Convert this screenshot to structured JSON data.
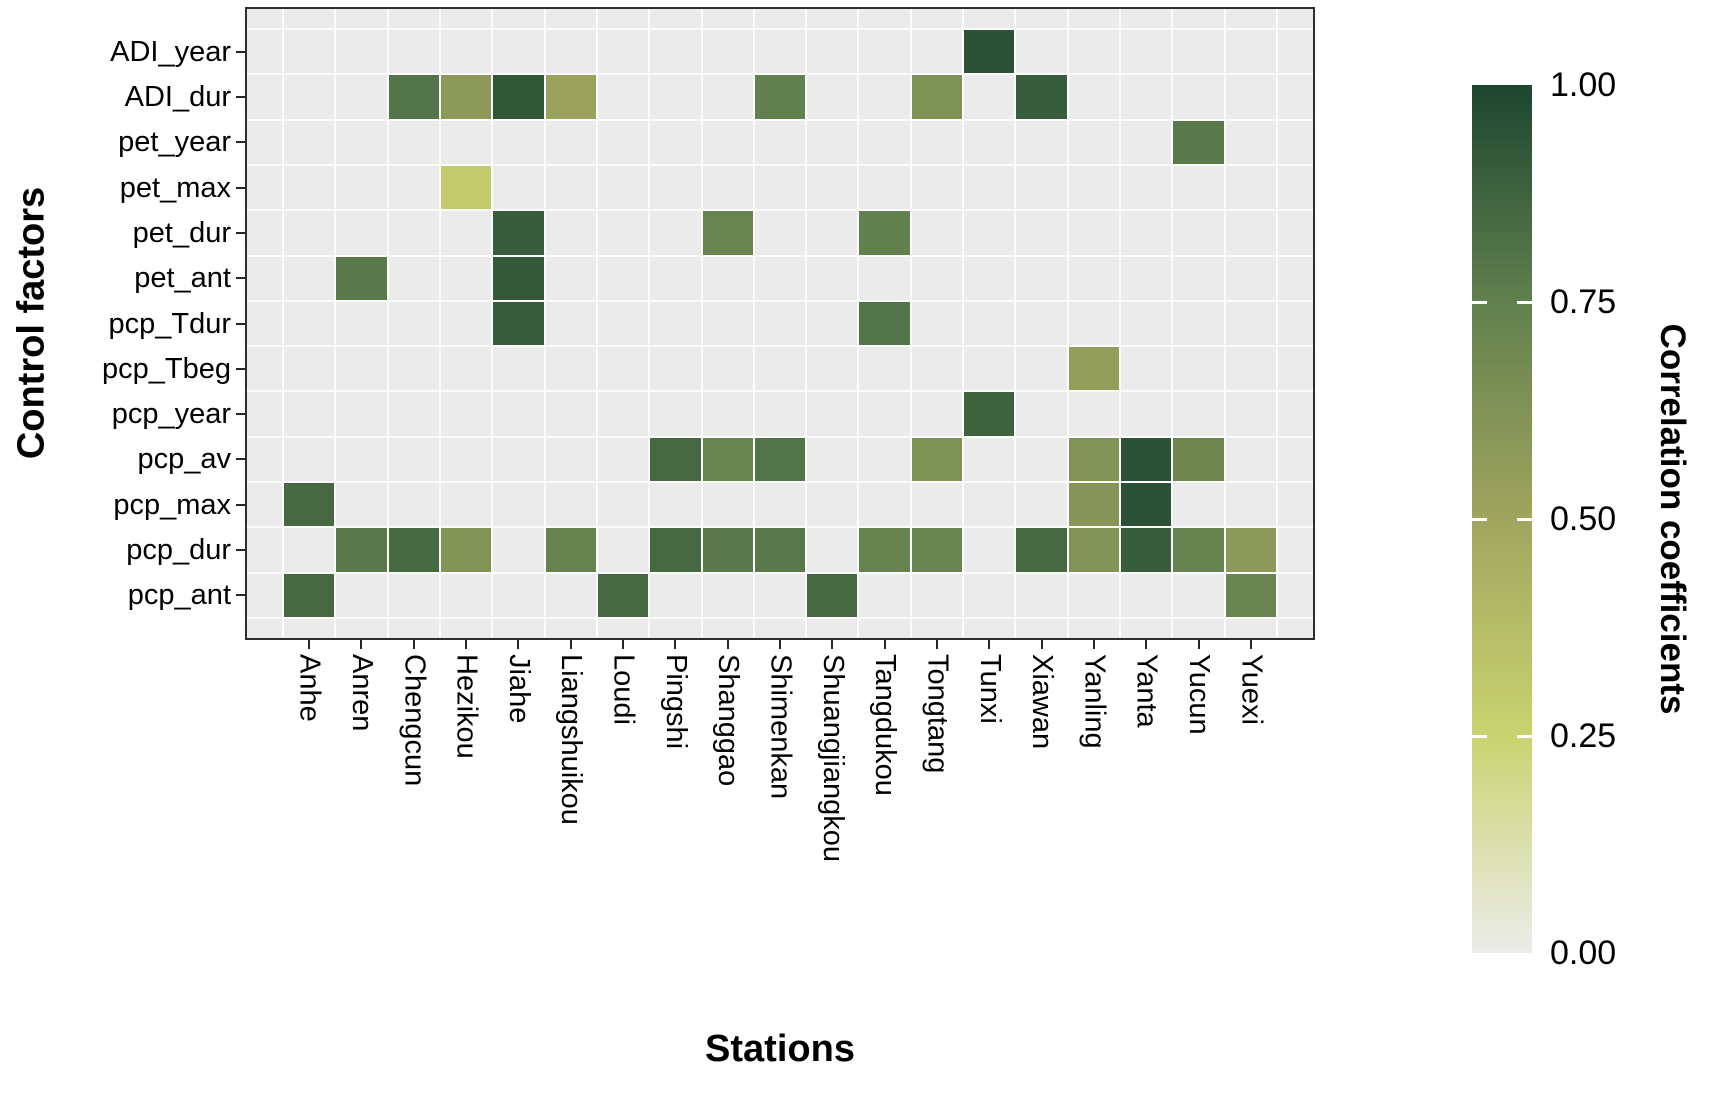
{
  "chart_data": {
    "type": "heatmap",
    "title": "",
    "xlabel": "Stations",
    "ylabel": "Control factors",
    "x_categories": [
      "Anhe",
      "Anren",
      "Chengcun",
      "Hezikou",
      "Jiahe",
      "Liangshuikou",
      "Loudi",
      "Pingshi",
      "Shanggao",
      "Shimenkan",
      "Shuangjiangkou",
      "Tangdukou",
      "Tongtang",
      "Tunxi",
      "Xiawan",
      "Yanling",
      "Yanta",
      "Yucun",
      "Yuexi"
    ],
    "y_categories": [
      "ADI_year",
      "ADI_dur",
      "pet_year",
      "pet_max",
      "pet_dur",
      "pet_ant",
      "pcp_Tdur",
      "pcp_Tbeg",
      "pcp_year",
      "pcp_av",
      "pcp_max",
      "pcp_dur",
      "pcp_ant"
    ],
    "value_range": [
      0,
      1
    ],
    "panel_background": "#ebebeb",
    "gridline_color": "#ffffff",
    "color_scale": [
      {
        "value": 0.0,
        "color": "#ececea"
      },
      {
        "value": 0.25,
        "color": "#c9d470"
      },
      {
        "value": 0.5,
        "color": "#a0a55e"
      },
      {
        "value": 0.75,
        "color": "#61804e"
      },
      {
        "value": 1.0,
        "color": "#1d4630"
      }
    ],
    "colorbar": {
      "title": "Correlation coefficients",
      "ticks": [
        {
          "label": "1.00",
          "value": 1.0
        },
        {
          "label": "0.75",
          "value": 0.75
        },
        {
          "label": "0.50",
          "value": 0.5
        },
        {
          "label": "0.25",
          "value": 0.25
        },
        {
          "label": "0.00",
          "value": 0.0
        }
      ]
    },
    "cells": [
      {
        "station": "Tunxi",
        "factor": "ADI_year",
        "value": 0.95
      },
      {
        "station": "Chengcun",
        "factor": "ADI_dur",
        "value": 0.8
      },
      {
        "station": "Hezikou",
        "factor": "ADI_dur",
        "value": 0.58
      },
      {
        "station": "Jiahe",
        "factor": "ADI_dur",
        "value": 0.93
      },
      {
        "station": "Liangshuikou",
        "factor": "ADI_dur",
        "value": 0.52
      },
      {
        "station": "Shimenkan",
        "factor": "ADI_dur",
        "value": 0.75
      },
      {
        "station": "Tongtang",
        "factor": "ADI_dur",
        "value": 0.63
      },
      {
        "station": "Xiawan",
        "factor": "ADI_dur",
        "value": 0.9
      },
      {
        "station": "Yucun",
        "factor": "pet_year",
        "value": 0.78
      },
      {
        "station": "Hezikou",
        "factor": "pet_max",
        "value": 0.3
      },
      {
        "station": "Jiahe",
        "factor": "pet_dur",
        "value": 0.9
      },
      {
        "station": "Shanggao",
        "factor": "pet_dur",
        "value": 0.72
      },
      {
        "station": "Tangdukou",
        "factor": "pet_dur",
        "value": 0.75
      },
      {
        "station": "Anren",
        "factor": "pet_ant",
        "value": 0.78
      },
      {
        "station": "Jiahe",
        "factor": "pet_ant",
        "value": 0.92
      },
      {
        "station": "Jiahe",
        "factor": "pcp_Tdur",
        "value": 0.9
      },
      {
        "station": "Tangdukou",
        "factor": "pcp_Tdur",
        "value": 0.8
      },
      {
        "station": "Yanling",
        "factor": "pcp_Tbeg",
        "value": 0.55
      },
      {
        "station": "Tunxi",
        "factor": "pcp_year",
        "value": 0.88
      },
      {
        "station": "Pingshi",
        "factor": "pcp_av",
        "value": 0.85
      },
      {
        "station": "Shanggao",
        "factor": "pcp_av",
        "value": 0.72
      },
      {
        "station": "Shimenkan",
        "factor": "pcp_av",
        "value": 0.8
      },
      {
        "station": "Tongtang",
        "factor": "pcp_av",
        "value": 0.63
      },
      {
        "station": "Yanling",
        "factor": "pcp_av",
        "value": 0.62
      },
      {
        "station": "Yanta",
        "factor": "pcp_av",
        "value": 0.95
      },
      {
        "station": "Yucun",
        "factor": "pcp_av",
        "value": 0.7
      },
      {
        "station": "Anhe",
        "factor": "pcp_max",
        "value": 0.85
      },
      {
        "station": "Yanling",
        "factor": "pcp_max",
        "value": 0.6
      },
      {
        "station": "Yanta",
        "factor": "pcp_max",
        "value": 0.95
      },
      {
        "station": "Anren",
        "factor": "pcp_dur",
        "value": 0.78
      },
      {
        "station": "Chengcun",
        "factor": "pcp_dur",
        "value": 0.85
      },
      {
        "station": "Hezikou",
        "factor": "pcp_dur",
        "value": 0.62
      },
      {
        "station": "Liangshuikou",
        "factor": "pcp_dur",
        "value": 0.73
      },
      {
        "station": "Pingshi",
        "factor": "pcp_dur",
        "value": 0.85
      },
      {
        "station": "Shanggao",
        "factor": "pcp_dur",
        "value": 0.78
      },
      {
        "station": "Shimenkan",
        "factor": "pcp_dur",
        "value": 0.78
      },
      {
        "station": "Tangdukou",
        "factor": "pcp_dur",
        "value": 0.73
      },
      {
        "station": "Tongtang",
        "factor": "pcp_dur",
        "value": 0.72
      },
      {
        "station": "Xiawan",
        "factor": "pcp_dur",
        "value": 0.85
      },
      {
        "station": "Yanling",
        "factor": "pcp_dur",
        "value": 0.62
      },
      {
        "station": "Yanta",
        "factor": "pcp_dur",
        "value": 0.9
      },
      {
        "station": "Yucun",
        "factor": "pcp_dur",
        "value": 0.73
      },
      {
        "station": "Yuexi",
        "factor": "pcp_dur",
        "value": 0.58
      },
      {
        "station": "Anhe",
        "factor": "pcp_ant",
        "value": 0.85
      },
      {
        "station": "Loudi",
        "factor": "pcp_ant",
        "value": 0.85
      },
      {
        "station": "Shuangjiangkou",
        "factor": "pcp_ant",
        "value": 0.85
      },
      {
        "station": "Yuexi",
        "factor": "pcp_ant",
        "value": 0.72
      }
    ]
  }
}
